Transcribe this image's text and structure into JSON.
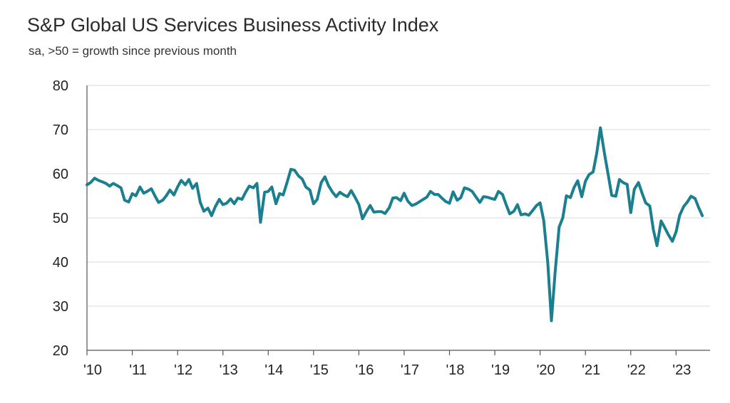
{
  "chart_data": {
    "type": "line",
    "title": "S&P Global US Services Business Activity Index",
    "subtitle": "sa, >50 = growth since previous month",
    "xlabel": "",
    "ylabel": "",
    "ylim": [
      20,
      80
    ],
    "xlim": [
      2010.0,
      2023.75
    ],
    "yticks": [
      20,
      30,
      40,
      50,
      60,
      70,
      80
    ],
    "xticks": [
      2010,
      2011,
      2012,
      2013,
      2014,
      2015,
      2016,
      2017,
      2018,
      2019,
      2020,
      2021,
      2022,
      2023
    ],
    "xtick_labels": [
      "'10",
      "'11",
      "'12",
      "'13",
      "'14",
      "'15",
      "'16",
      "'17",
      "'18",
      "'19",
      "'20",
      "'21",
      "'22",
      "'23"
    ],
    "grid": true,
    "legend": "none",
    "colors": {
      "line": "#1a7f8e",
      "grid": "#d9d9d9",
      "axis": "#555555"
    },
    "series": [
      {
        "points": [
          [
            2010.0,
            57.5
          ],
          [
            2010.08,
            58.0
          ],
          [
            2010.17,
            59.0
          ],
          [
            2010.25,
            58.5
          ],
          [
            2010.33,
            58.2
          ],
          [
            2010.42,
            57.8
          ],
          [
            2010.5,
            57.2
          ],
          [
            2010.58,
            57.8
          ],
          [
            2010.67,
            57.3
          ],
          [
            2010.75,
            56.8
          ],
          [
            2010.83,
            54.0
          ],
          [
            2010.92,
            53.6
          ],
          [
            2011.0,
            55.5
          ],
          [
            2011.08,
            55.0
          ],
          [
            2011.17,
            57.0
          ],
          [
            2011.25,
            55.6
          ],
          [
            2011.33,
            56.0
          ],
          [
            2011.42,
            56.6
          ],
          [
            2011.5,
            55.0
          ],
          [
            2011.58,
            53.5
          ],
          [
            2011.67,
            54.0
          ],
          [
            2011.75,
            55.0
          ],
          [
            2011.83,
            56.3
          ],
          [
            2011.92,
            55.2
          ],
          [
            2012.0,
            57.0
          ],
          [
            2012.08,
            58.5
          ],
          [
            2012.17,
            57.5
          ],
          [
            2012.25,
            58.7
          ],
          [
            2012.33,
            56.7
          ],
          [
            2012.42,
            57.8
          ],
          [
            2012.5,
            53.5
          ],
          [
            2012.58,
            51.5
          ],
          [
            2012.67,
            52.2
          ],
          [
            2012.75,
            50.5
          ],
          [
            2012.83,
            52.5
          ],
          [
            2012.92,
            54.2
          ],
          [
            2013.0,
            53.0
          ],
          [
            2013.08,
            53.3
          ],
          [
            2013.17,
            54.3
          ],
          [
            2013.25,
            53.2
          ],
          [
            2013.33,
            54.5
          ],
          [
            2013.42,
            54.2
          ],
          [
            2013.5,
            55.8
          ],
          [
            2013.58,
            57.2
          ],
          [
            2013.67,
            56.8
          ],
          [
            2013.75,
            57.8
          ],
          [
            2013.83,
            49.0
          ],
          [
            2013.92,
            55.8
          ],
          [
            2014.0,
            56.0
          ],
          [
            2014.08,
            57.0
          ],
          [
            2014.17,
            53.2
          ],
          [
            2014.25,
            55.5
          ],
          [
            2014.33,
            55.2
          ],
          [
            2014.42,
            58.2
          ],
          [
            2014.5,
            61.0
          ],
          [
            2014.58,
            60.8
          ],
          [
            2014.67,
            59.5
          ],
          [
            2014.75,
            58.8
          ],
          [
            2014.83,
            57.0
          ],
          [
            2014.92,
            56.3
          ],
          [
            2015.0,
            53.2
          ],
          [
            2015.08,
            54.2
          ],
          [
            2015.17,
            58.0
          ],
          [
            2015.25,
            59.3
          ],
          [
            2015.33,
            57.3
          ],
          [
            2015.42,
            55.8
          ],
          [
            2015.5,
            54.8
          ],
          [
            2015.58,
            55.8
          ],
          [
            2015.67,
            55.2
          ],
          [
            2015.75,
            54.8
          ],
          [
            2015.83,
            56.2
          ],
          [
            2015.92,
            54.6
          ],
          [
            2016.0,
            53.0
          ],
          [
            2016.08,
            49.8
          ],
          [
            2016.17,
            51.5
          ],
          [
            2016.25,
            52.8
          ],
          [
            2016.33,
            51.3
          ],
          [
            2016.42,
            51.4
          ],
          [
            2016.5,
            51.4
          ],
          [
            2016.58,
            51.0
          ],
          [
            2016.67,
            52.3
          ],
          [
            2016.75,
            54.5
          ],
          [
            2016.83,
            54.6
          ],
          [
            2016.92,
            53.9
          ],
          [
            2017.0,
            55.6
          ],
          [
            2017.08,
            53.8
          ],
          [
            2017.17,
            52.8
          ],
          [
            2017.25,
            53.1
          ],
          [
            2017.33,
            53.6
          ],
          [
            2017.42,
            54.2
          ],
          [
            2017.5,
            54.7
          ],
          [
            2017.58,
            56.0
          ],
          [
            2017.67,
            55.3
          ],
          [
            2017.75,
            55.3
          ],
          [
            2017.83,
            54.5
          ],
          [
            2017.92,
            53.7
          ],
          [
            2018.0,
            53.3
          ],
          [
            2018.08,
            55.9
          ],
          [
            2018.17,
            54.0
          ],
          [
            2018.25,
            54.6
          ],
          [
            2018.33,
            56.8
          ],
          [
            2018.42,
            56.5
          ],
          [
            2018.5,
            56.0
          ],
          [
            2018.58,
            54.8
          ],
          [
            2018.67,
            53.5
          ],
          [
            2018.75,
            54.8
          ],
          [
            2018.83,
            54.7
          ],
          [
            2018.92,
            54.4
          ],
          [
            2019.0,
            54.2
          ],
          [
            2019.08,
            56.0
          ],
          [
            2019.17,
            55.3
          ],
          [
            2019.25,
            53.0
          ],
          [
            2019.33,
            50.9
          ],
          [
            2019.42,
            51.5
          ],
          [
            2019.5,
            53.0
          ],
          [
            2019.58,
            50.7
          ],
          [
            2019.67,
            50.9
          ],
          [
            2019.75,
            50.6
          ],
          [
            2019.83,
            51.6
          ],
          [
            2019.92,
            52.8
          ],
          [
            2020.0,
            53.4
          ],
          [
            2020.08,
            49.4
          ],
          [
            2020.17,
            39.8
          ],
          [
            2020.25,
            26.7
          ],
          [
            2020.33,
            37.5
          ],
          [
            2020.42,
            47.9
          ],
          [
            2020.5,
            50.0
          ],
          [
            2020.58,
            55.0
          ],
          [
            2020.67,
            54.6
          ],
          [
            2020.75,
            56.9
          ],
          [
            2020.83,
            58.4
          ],
          [
            2020.92,
            54.8
          ],
          [
            2021.0,
            58.3
          ],
          [
            2021.08,
            59.8
          ],
          [
            2021.17,
            60.4
          ],
          [
            2021.25,
            64.7
          ],
          [
            2021.33,
            70.4
          ],
          [
            2021.42,
            64.6
          ],
          [
            2021.5,
            59.9
          ],
          [
            2021.58,
            55.1
          ],
          [
            2021.67,
            54.9
          ],
          [
            2021.75,
            58.7
          ],
          [
            2021.83,
            58.0
          ],
          [
            2021.92,
            57.6
          ],
          [
            2022.0,
            51.2
          ],
          [
            2022.08,
            56.5
          ],
          [
            2022.17,
            58.0
          ],
          [
            2022.25,
            55.6
          ],
          [
            2022.33,
            53.4
          ],
          [
            2022.42,
            52.7
          ],
          [
            2022.5,
            47.3
          ],
          [
            2022.58,
            43.7
          ],
          [
            2022.67,
            49.3
          ],
          [
            2022.75,
            47.8
          ],
          [
            2022.83,
            46.2
          ],
          [
            2022.92,
            44.7
          ],
          [
            2023.0,
            46.8
          ],
          [
            2023.08,
            50.6
          ],
          [
            2023.17,
            52.6
          ],
          [
            2023.25,
            53.6
          ],
          [
            2023.33,
            54.9
          ],
          [
            2023.42,
            54.4
          ],
          [
            2023.5,
            52.3
          ],
          [
            2023.58,
            50.5
          ]
        ]
      }
    ]
  }
}
